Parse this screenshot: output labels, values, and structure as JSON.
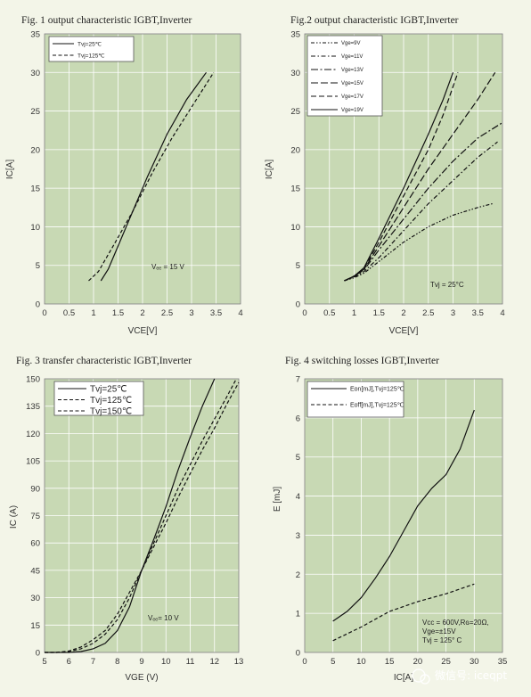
{
  "chart_data": [
    {
      "type": "line",
      "title": "Fig. 1  output characteristic IGBT,Inverter",
      "xlabel": "VCE[V]",
      "ylabel": "IC[A]",
      "xlim": [
        0,
        4
      ],
      "ylim": [
        0,
        35
      ],
      "xticks": [
        "0",
        "0.5",
        "1",
        "1.5",
        "2",
        "2.5",
        "3",
        "3.5",
        "4"
      ],
      "yticks": [
        "0",
        "5",
        "10",
        "15",
        "20",
        "25",
        "30",
        "35"
      ],
      "grid": true,
      "legend": "top-left",
      "annotation": "Vₑₑ = 15 V",
      "series": [
        {
          "name": "Tvj=25℃",
          "style": "solid",
          "x": [
            1.15,
            1.3,
            1.5,
            1.8,
            2.1,
            2.5,
            2.9,
            3.3
          ],
          "y": [
            3,
            4.5,
            7.5,
            12,
            16.5,
            22,
            26.5,
            30
          ]
        },
        {
          "name": "Tvj=125℃",
          "style": "dashed",
          "x": [
            0.9,
            1.1,
            1.4,
            1.8,
            2.2,
            2.6,
            3.0,
            3.45
          ],
          "y": [
            3,
            4.2,
            7.5,
            12,
            17,
            21.5,
            25.5,
            30
          ]
        }
      ]
    },
    {
      "type": "line",
      "title": "Fig.2  output characteristic IGBT,Inverter",
      "xlabel": "VCE[V]",
      "ylabel": "IC[A]",
      "xlim": [
        0,
        4
      ],
      "ylim": [
        0,
        35
      ],
      "xticks": [
        "0",
        "0.5",
        "1",
        "1.5",
        "2",
        "2.5",
        "3",
        "3.5",
        "4"
      ],
      "yticks": [
        "0",
        "5",
        "10",
        "15",
        "20",
        "25",
        "30",
        "35"
      ],
      "grid": true,
      "legend": "top-left",
      "annotation": "Tvj = 25°C",
      "series": [
        {
          "name": "Vge=9V",
          "style": "dashdotdot",
          "x": [
            0.8,
            1.0,
            1.2,
            1.5,
            2.0,
            2.5,
            3.0,
            3.5,
            3.8
          ],
          "y": [
            3,
            3.4,
            4.0,
            5.5,
            8.0,
            10.0,
            11.5,
            12.5,
            13.0
          ]
        },
        {
          "name": "Vge=11V",
          "style": "dashdot",
          "x": [
            0.8,
            1.0,
            1.2,
            1.5,
            2.0,
            2.5,
            3.0,
            3.5,
            3.9
          ],
          "y": [
            3,
            3.5,
            4.2,
            6.0,
            9.5,
            13.0,
            16.0,
            19.0,
            21.0
          ]
        },
        {
          "name": "Vge=13V",
          "style": "longdashdot",
          "x": [
            0.8,
            1.0,
            1.2,
            1.5,
            2.0,
            2.5,
            3.0,
            3.5,
            4.0
          ],
          "y": [
            3,
            3.6,
            4.4,
            7.0,
            11.0,
            15.0,
            18.5,
            21.5,
            23.5
          ]
        },
        {
          "name": "Vge=15V",
          "style": "longdash",
          "x": [
            0.8,
            1.0,
            1.2,
            1.5,
            2.0,
            2.5,
            3.0,
            3.5,
            3.85
          ],
          "y": [
            3,
            3.6,
            4.5,
            7.5,
            12.5,
            17.5,
            22.0,
            26.5,
            30.0
          ]
        },
        {
          "name": "Vge=17V",
          "style": "dash",
          "x": [
            0.8,
            1.0,
            1.2,
            1.5,
            2.0,
            2.5,
            2.8,
            3.1
          ],
          "y": [
            3,
            3.6,
            4.6,
            8.0,
            14.0,
            20.0,
            24.5,
            30.0
          ]
        },
        {
          "name": "Vge=19V",
          "style": "solid",
          "x": [
            0.8,
            1.0,
            1.2,
            1.5,
            2.0,
            2.5,
            2.8,
            3.0
          ],
          "y": [
            3,
            3.6,
            4.7,
            8.5,
            15.0,
            22.0,
            26.5,
            30.0
          ]
        }
      ]
    },
    {
      "type": "line",
      "title": "Fig. 3 transfer characteristic IGBT,Inverter",
      "xlabel": "VGE (V)",
      "ylabel": "IC (A)",
      "xlim": [
        5,
        13
      ],
      "ylim": [
        0,
        150
      ],
      "xticks": [
        "5",
        "6",
        "7",
        "8",
        "9",
        "10",
        "11",
        "12",
        "13"
      ],
      "yticks": [
        "0",
        "15",
        "30",
        "45",
        "60",
        "75",
        "90",
        "105",
        "120",
        "135",
        "150"
      ],
      "grid": true,
      "legend": "top-left",
      "annotation": "Vₑₑ= 10 V",
      "series": [
        {
          "name": "Tvj=25℃",
          "style": "solid",
          "x": [
            5.0,
            6.0,
            6.5,
            7.0,
            7.5,
            8.0,
            8.5,
            9.0,
            9.5,
            10.0,
            10.5,
            11.0,
            11.5,
            12.0
          ],
          "y": [
            0,
            0,
            0.5,
            2,
            5,
            12,
            25,
            45,
            62,
            80,
            100,
            118,
            135,
            150
          ]
        },
        {
          "name": "Tvj=125℃",
          "style": "dashed",
          "x": [
            5.0,
            5.5,
            6.0,
            6.5,
            7.0,
            7.5,
            8.0,
            8.5,
            9.0,
            9.5,
            10.0,
            10.5,
            11.0,
            11.5,
            12.0,
            12.5,
            12.9
          ],
          "y": [
            0,
            0,
            0.5,
            2,
            5,
            10,
            18,
            30,
            45,
            60,
            75,
            90,
            103,
            116,
            128,
            140,
            150
          ]
        },
        {
          "name": "Tvj=150℃",
          "style": "dashed",
          "x": [
            5.0,
            5.5,
            6.0,
            6.5,
            7.0,
            7.5,
            8.0,
            8.5,
            9.0,
            9.5,
            10.0,
            10.5,
            11.0,
            11.5,
            12.0,
            12.5,
            13.0
          ],
          "y": [
            0,
            0,
            0.8,
            3,
            7,
            12,
            21,
            33,
            45,
            58,
            71,
            85,
            98,
            111,
            123,
            136,
            148
          ]
        }
      ]
    },
    {
      "type": "line",
      "title": "Fig. 4  switching losses IGBT,Inverter",
      "xlabel": "IC[A]",
      "ylabel": "E [mJ]",
      "xlim": [
        0,
        35
      ],
      "ylim": [
        0,
        7
      ],
      "xticks": [
        "0",
        "5",
        "10",
        "15",
        "20",
        "25",
        "30",
        "35"
      ],
      "yticks": [
        "0",
        "1",
        "2",
        "3",
        "4",
        "5",
        "6",
        "7"
      ],
      "grid": true,
      "legend": "top-left",
      "annotation": [
        "Vᴄᴄ = 600V,Rɢ=20Ω,",
        "Vge=±15V",
        "Tvj = 125° C"
      ],
      "series": [
        {
          "name": "Eon[mJ],Tvj=125℃",
          "style": "solid",
          "x": [
            5,
            7.5,
            10,
            12.5,
            15,
            17.5,
            20,
            22.5,
            25,
            27.5,
            30
          ],
          "y": [
            0.8,
            1.05,
            1.4,
            1.9,
            2.45,
            3.1,
            3.75,
            4.2,
            4.55,
            5.2,
            6.2
          ]
        },
        {
          "name": "Eoff[mJ],Tvj=125℃",
          "style": "dashed",
          "x": [
            5,
            10,
            15,
            20,
            25,
            30
          ],
          "y": [
            0.3,
            0.65,
            1.05,
            1.3,
            1.5,
            1.75
          ]
        }
      ]
    }
  ],
  "watermark": "微信号: iceqpt"
}
